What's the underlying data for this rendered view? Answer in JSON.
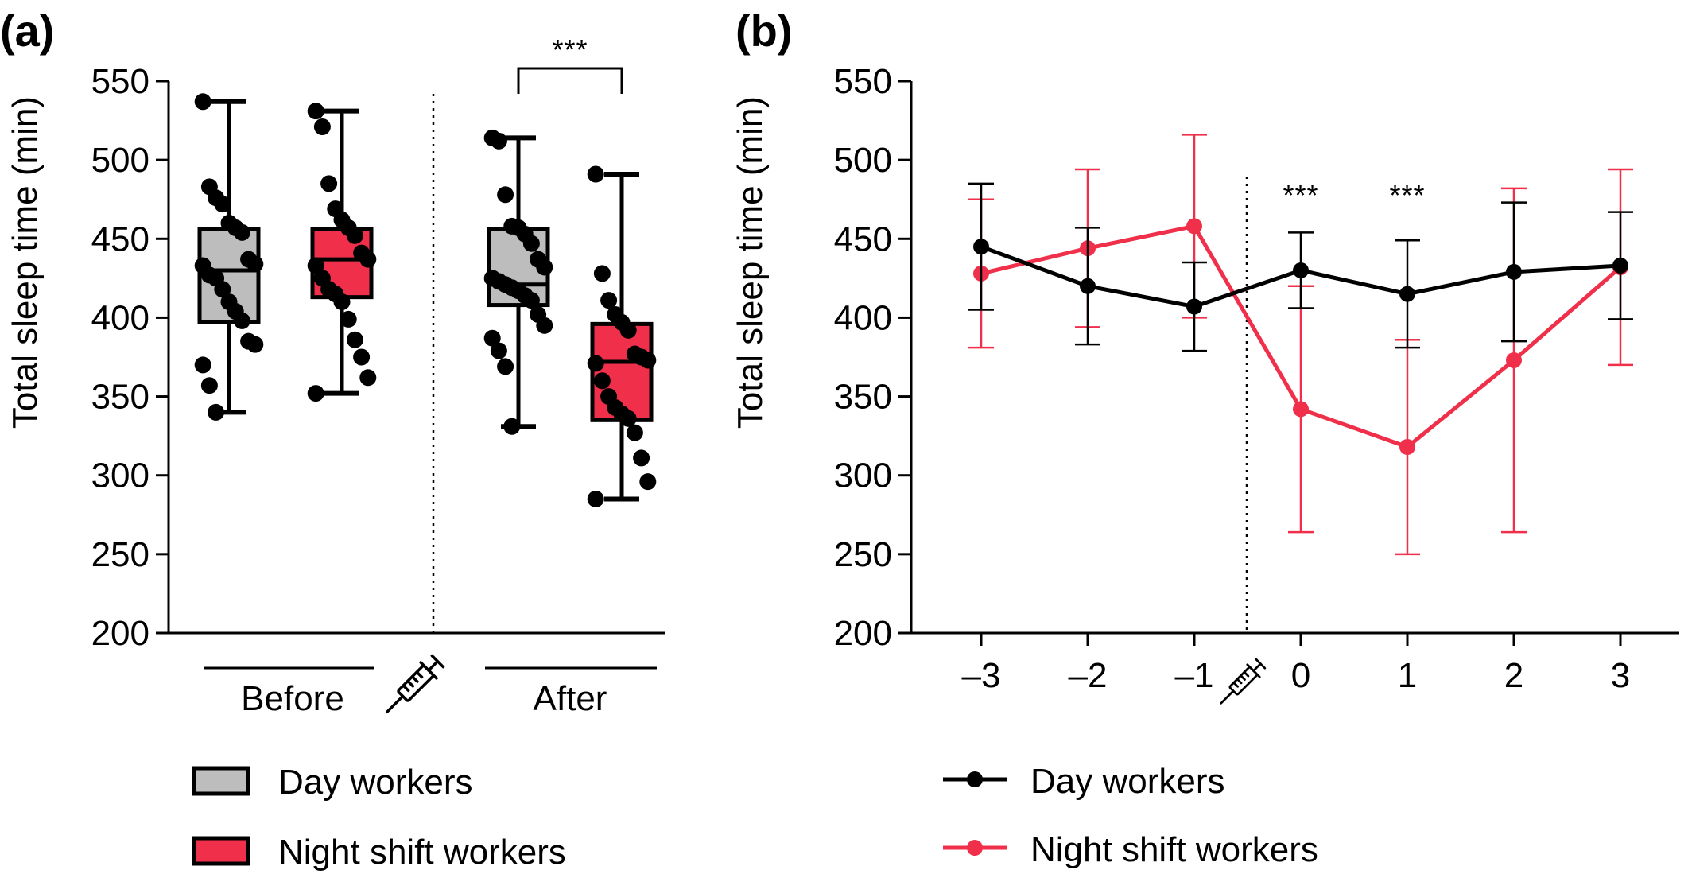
{
  "panel_labels": {
    "a": "(a)",
    "b": "(b)"
  },
  "colors": {
    "day": "#000000",
    "day_box": "#bdbdbd",
    "night": "#f0304b",
    "night_box": "#f0304b",
    "axis": "#000000"
  },
  "chart_data": [
    {
      "type": "box",
      "panel": "(a)",
      "ylabel": "Total sleep time (min)",
      "ylim": [
        200,
        550
      ],
      "yticks": [
        "200",
        "250",
        "300",
        "350",
        "400",
        "450",
        "500",
        "550"
      ],
      "groups": [
        {
          "label": "Before",
          "icon": "syringe-icon"
        },
        {
          "label": "After"
        }
      ],
      "significance": "***",
      "series": [
        {
          "name": "Day workers",
          "group": "Before",
          "min": 340,
          "q1": 397,
          "median": 430,
          "q3": 456,
          "max": 537,
          "points": [
            537,
            483,
            476,
            472,
            460,
            457,
            454,
            437,
            434,
            433,
            427,
            425,
            418,
            410,
            404,
            398,
            385,
            383,
            370,
            357,
            340
          ]
        },
        {
          "name": "Night shift workers",
          "group": "Before",
          "min": 352,
          "q1": 413,
          "median": 437,
          "q3": 456,
          "max": 531,
          "points": [
            531,
            521,
            485,
            469,
            462,
            457,
            452,
            441,
            437,
            433,
            425,
            418,
            415,
            410,
            399,
            386,
            375,
            362,
            352
          ]
        },
        {
          "name": "Day workers",
          "group": "After",
          "min": 331,
          "q1": 408,
          "median": 421,
          "q3": 456,
          "max": 514,
          "points": [
            514,
            512,
            478,
            458,
            457,
            453,
            447,
            437,
            432,
            425,
            423,
            421,
            419,
            417,
            414,
            411,
            402,
            395,
            387,
            379,
            369,
            331
          ]
        },
        {
          "name": "Night shift workers",
          "group": "After",
          "min": 285,
          "q1": 335,
          "median": 372,
          "q3": 396,
          "max": 491,
          "points": [
            491,
            428,
            411,
            402,
            397,
            392,
            377,
            375,
            373,
            371,
            360,
            350,
            343,
            339,
            336,
            327,
            311,
            296,
            285
          ]
        }
      ]
    },
    {
      "type": "line",
      "panel": "(b)",
      "ylabel": "Total sleep time (min)",
      "ylim": [
        200,
        550
      ],
      "yticks": [
        "200",
        "250",
        "300",
        "350",
        "400",
        "450",
        "500",
        "550"
      ],
      "x": [
        -3,
        -2,
        -1,
        0,
        1,
        2,
        3
      ],
      "xtick_labels": [
        "–3",
        "–2",
        "–1",
        "0",
        "1",
        "2",
        "3"
      ],
      "significance_marks": [
        {
          "x": 0,
          "label": "***"
        },
        {
          "x": 1,
          "label": "***"
        }
      ],
      "series": [
        {
          "name": "Day workers",
          "values": [
            445,
            420,
            407,
            430,
            415,
            429,
            433
          ],
          "sd": [
            40,
            37,
            28,
            24,
            34,
            44,
            34
          ]
        },
        {
          "name": "Night shift workers",
          "values": [
            428,
            444,
            458,
            342,
            318,
            373,
            432
          ],
          "sd": [
            47,
            50,
            58,
            78,
            68,
            109,
            62
          ]
        }
      ]
    }
  ],
  "legend_a": [
    {
      "label": "Day workers",
      "swatch": "box-day"
    },
    {
      "label": "Night shift workers",
      "swatch": "box-night"
    }
  ],
  "legend_b": [
    {
      "label": "Day workers",
      "swatch": "line-day"
    },
    {
      "label": "Night shift workers",
      "swatch": "line-night"
    }
  ]
}
